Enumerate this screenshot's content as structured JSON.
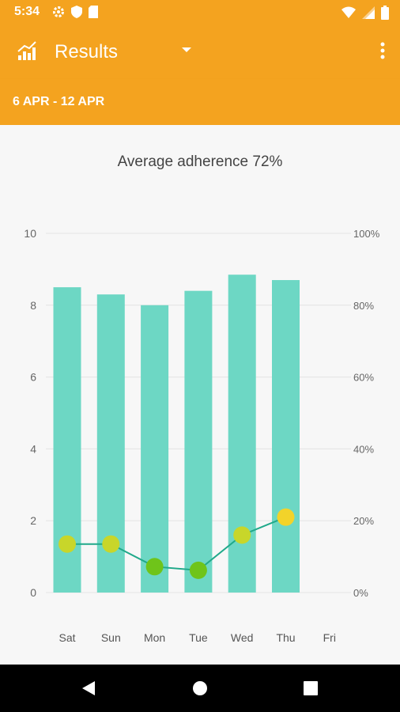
{
  "status_bar": {
    "time": "5:34",
    "icons_left": [
      "gear-icon",
      "shield-icon",
      "sd-card-icon"
    ],
    "icons_right": [
      "wifi-icon",
      "cell-signal-icon",
      "battery-icon"
    ]
  },
  "app_bar": {
    "title": "Results",
    "icon": "bar-chart-icon",
    "dropdown": "dropdown-arrow-icon",
    "menu": "more-vert-icon",
    "color": "#f4a31f"
  },
  "date_range": "6 APR - 12 APR",
  "chart_data": {
    "type": "bar",
    "title": "Average adherence 72%",
    "categories": [
      "Sat",
      "Sun",
      "Mon",
      "Tue",
      "Wed",
      "Thu",
      "Fri"
    ],
    "series": [
      {
        "type": "bar",
        "axis": "left",
        "values": [
          8.5,
          8.3,
          8.0,
          8.4,
          8.85,
          8.7,
          null
        ],
        "color": "#6dd7c4"
      },
      {
        "type": "line",
        "axis": "left",
        "values": [
          1.35,
          1.35,
          0.72,
          0.62,
          1.6,
          2.1,
          null
        ],
        "color": "#20a98a",
        "point_colors": [
          "#c8d62a",
          "#c8d62a",
          "#6fc41a",
          "#6fc41a",
          "#c8d62a",
          "#f2d32a",
          null
        ]
      }
    ],
    "y_left": {
      "min": 0,
      "max": 10,
      "ticks": [
        "0",
        "2",
        "4",
        "6",
        "8",
        "10"
      ]
    },
    "y_right": {
      "min": 0,
      "max": 100,
      "ticks": [
        "0%",
        "20%",
        "40%",
        "60%",
        "80%",
        "100%"
      ]
    },
    "grid": true
  },
  "nav_bar": {
    "buttons": [
      "back-icon",
      "home-icon",
      "recents-icon"
    ]
  }
}
